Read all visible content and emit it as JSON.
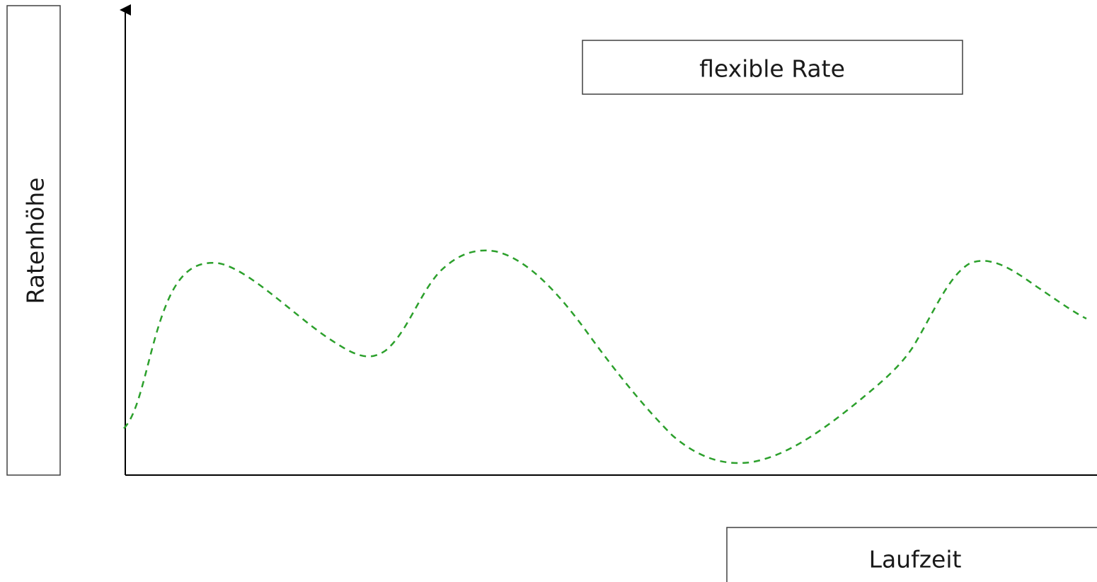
{
  "diagram": {
    "y_axis_label": "Ratenhöhe",
    "x_axis_label": "Laufzeit",
    "curve_label": "flexible Rate",
    "curve_color": "#2ca02c",
    "axis_color": "#000000",
    "box_border_color": "#404040",
    "curve_style": "dashed"
  }
}
